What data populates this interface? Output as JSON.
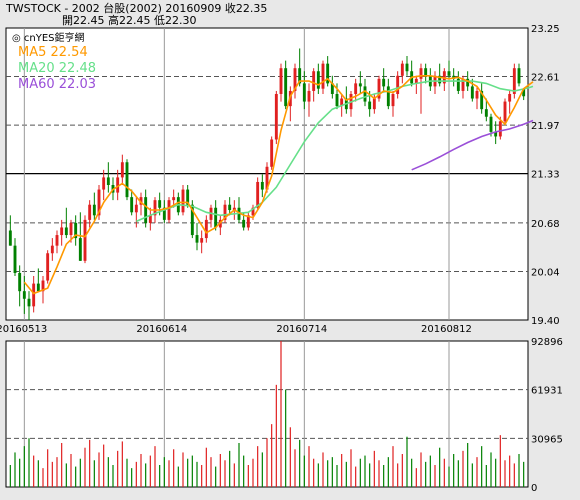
{
  "header": {
    "line1": "TWSTOCK  -  2002  台股(2002)  20160909    收22.35",
    "line2": "開22.45    高22.45    低22.30"
  },
  "legend": {
    "source": "◎ cnYES鉅亨網",
    "ma5": "MA5 22.54",
    "ma20": "MA20 22.48",
    "ma60": "MA60 22.03"
  },
  "colors": {
    "up": "#e02020",
    "down": "#008000",
    "ma5": "#ff9900",
    "ma20": "#66e08a",
    "ma60": "#9a4fd8",
    "background": "#ffffff",
    "page": "#e8e8e8"
  },
  "chart_data": [
    {
      "type": "candlestick",
      "y_ticks": [
        "23.25",
        "22.61",
        "21.97",
        "21.33",
        "20.68",
        "20.04",
        "19.40"
      ],
      "ylim": [
        19.4,
        23.25
      ],
      "x_ticks": [
        "20160513",
        "20160614",
        "20160714",
        "20160812"
      ],
      "x_tick_index": [
        3,
        33,
        63,
        94
      ],
      "grid": "dashed horizontal",
      "candles": [
        [
          20.58,
          20.78,
          20.38,
          20.38
        ],
        [
          20.38,
          20.48,
          19.98,
          20.02
        ],
        [
          20.02,
          20.12,
          19.58,
          19.78
        ],
        [
          19.78,
          19.98,
          19.48,
          19.68
        ],
        [
          19.68,
          19.78,
          19.4,
          19.58
        ],
        [
          19.58,
          19.98,
          19.5,
          19.88
        ],
        [
          19.88,
          20.08,
          19.78,
          19.78
        ],
        [
          19.78,
          19.98,
          19.62,
          19.92
        ],
        [
          19.92,
          20.32,
          19.88,
          20.28
        ],
        [
          20.28,
          20.48,
          20.18,
          20.38
        ],
        [
          20.38,
          20.58,
          20.28,
          20.52
        ],
        [
          20.52,
          20.72,
          20.38,
          20.62
        ],
        [
          20.62,
          20.88,
          20.48,
          20.52
        ],
        [
          20.52,
          20.72,
          20.42,
          20.68
        ],
        [
          20.68,
          20.78,
          20.38,
          20.48
        ],
        [
          20.48,
          20.82,
          20.18,
          20.18
        ],
        [
          20.18,
          20.78,
          20.15,
          20.72
        ],
        [
          20.72,
          20.98,
          20.62,
          20.92
        ],
        [
          20.92,
          21.08,
          20.72,
          20.78
        ],
        [
          20.78,
          21.18,
          20.72,
          21.12
        ],
        [
          21.12,
          21.38,
          20.98,
          21.28
        ],
        [
          21.28,
          21.48,
          21.08,
          21.18
        ],
        [
          21.18,
          21.28,
          20.98,
          21.08
        ],
        [
          21.08,
          21.38,
          20.98,
          21.28
        ],
        [
          21.28,
          21.58,
          21.18,
          21.48
        ],
        [
          21.48,
          21.52,
          20.98,
          21.02
        ],
        [
          21.02,
          21.12,
          20.78,
          20.82
        ],
        [
          20.82,
          21.02,
          20.62,
          20.92
        ],
        [
          20.92,
          21.08,
          20.78,
          21.02
        ],
        [
          21.02,
          21.12,
          20.62,
          20.68
        ],
        [
          20.68,
          20.88,
          20.58,
          20.78
        ],
        [
          20.78,
          21.02,
          20.68,
          20.98
        ],
        [
          20.98,
          21.08,
          20.78,
          20.88
        ],
        [
          20.88,
          20.98,
          20.68,
          20.72
        ],
        [
          20.72,
          21.02,
          20.68,
          20.98
        ],
        [
          20.98,
          21.12,
          20.88,
          21.02
        ],
        [
          21.02,
          21.08,
          20.78,
          20.82
        ],
        [
          20.82,
          21.18,
          20.78,
          21.12
        ],
        [
          21.12,
          21.18,
          20.88,
          20.92
        ],
        [
          20.92,
          20.98,
          20.48,
          20.52
        ],
        [
          20.52,
          20.68,
          20.32,
          20.42
        ],
        [
          20.42,
          20.58,
          20.28,
          20.48
        ],
        [
          20.48,
          20.78,
          20.42,
          20.72
        ],
        [
          20.72,
          20.92,
          20.62,
          20.88
        ],
        [
          20.88,
          20.98,
          20.58,
          20.62
        ],
        [
          20.62,
          20.78,
          20.52,
          20.72
        ],
        [
          20.72,
          20.98,
          20.68,
          20.92
        ],
        [
          20.92,
          21.02,
          20.78,
          20.85
        ],
        [
          20.85,
          20.98,
          20.72,
          20.88
        ],
        [
          20.88,
          21.02,
          20.68,
          20.72
        ],
        [
          20.72,
          20.82,
          20.58,
          20.62
        ],
        [
          20.62,
          20.82,
          20.58,
          20.78
        ],
        [
          20.78,
          20.92,
          20.72,
          20.88
        ],
        [
          20.88,
          21.28,
          20.85,
          21.22
        ],
        [
          21.22,
          21.32,
          21.02,
          21.12
        ],
        [
          21.12,
          21.48,
          21.08,
          21.42
        ],
        [
          21.42,
          21.82,
          21.38,
          21.78
        ],
        [
          21.78,
          22.42,
          21.72,
          22.38
        ],
        [
          22.38,
          22.78,
          22.28,
          22.72
        ],
        [
          22.72,
          22.82,
          22.18,
          22.22
        ],
        [
          22.22,
          22.48,
          22.02,
          22.42
        ],
        [
          22.42,
          22.78,
          22.32,
          22.72
        ],
        [
          22.72,
          22.98,
          22.48,
          22.52
        ],
        [
          22.52,
          22.68,
          22.18,
          22.28
        ],
        [
          22.28,
          22.52,
          22.08,
          22.42
        ],
        [
          22.42,
          22.72,
          22.28,
          22.68
        ],
        [
          22.68,
          22.78,
          22.38,
          22.45
        ],
        [
          22.45,
          22.82,
          22.38,
          22.78
        ],
        [
          22.78,
          22.88,
          22.48,
          22.52
        ],
        [
          22.52,
          22.62,
          22.32,
          22.38
        ],
        [
          22.38,
          22.52,
          22.18,
          22.22
        ],
        [
          22.22,
          22.38,
          22.08,
          22.32
        ],
        [
          22.32,
          22.48,
          22.12,
          22.18
        ],
        [
          22.18,
          22.42,
          22.08,
          22.38
        ],
        [
          22.38,
          22.58,
          22.28,
          22.52
        ],
        [
          22.52,
          22.68,
          22.38,
          22.48
        ],
        [
          22.48,
          22.58,
          22.22,
          22.28
        ],
        [
          22.28,
          22.42,
          22.08,
          22.18
        ],
        [
          22.18,
          22.38,
          22.12,
          22.32
        ],
        [
          22.32,
          22.62,
          22.28,
          22.58
        ],
        [
          22.58,
          22.72,
          22.42,
          22.48
        ],
        [
          22.48,
          22.58,
          22.18,
          22.22
        ],
        [
          22.22,
          22.42,
          22.08,
          22.38
        ],
        [
          22.38,
          22.68,
          22.32,
          22.62
        ],
        [
          22.62,
          22.82,
          22.52,
          22.78
        ],
        [
          22.78,
          22.88,
          22.62,
          22.68
        ],
        [
          22.68,
          22.82,
          22.48,
          22.52
        ],
        [
          22.52,
          22.62,
          22.38,
          22.58
        ],
        [
          22.58,
          22.78,
          22.12,
          22.72
        ],
        [
          22.72,
          22.78,
          22.52,
          22.62
        ],
        [
          22.62,
          22.72,
          22.42,
          22.48
        ],
        [
          22.48,
          22.68,
          22.38,
          22.62
        ],
        [
          22.62,
          22.78,
          22.48,
          22.52
        ],
        [
          22.52,
          22.72,
          22.42,
          22.68
        ],
        [
          22.68,
          22.82,
          22.58,
          22.62
        ],
        [
          22.62,
          22.72,
          22.48,
          22.58
        ],
        [
          22.58,
          22.68,
          22.38,
          22.42
        ],
        [
          22.42,
          22.62,
          22.32,
          22.58
        ],
        [
          22.58,
          22.68,
          22.42,
          22.48
        ],
        [
          22.48,
          22.58,
          22.28,
          22.32
        ],
        [
          22.32,
          22.48,
          22.18,
          22.42
        ],
        [
          22.42,
          22.52,
          22.12,
          22.18
        ],
        [
          22.18,
          22.32,
          22.02,
          22.08
        ],
        [
          22.08,
          22.12,
          21.82,
          21.88
        ],
        [
          21.88,
          22.02,
          21.72,
          21.82
        ],
        [
          21.82,
          22.08,
          21.78,
          22.02
        ],
        [
          22.02,
          22.32,
          21.98,
          22.28
        ],
        [
          22.28,
          22.42,
          22.12,
          22.38
        ],
        [
          22.38,
          22.78,
          22.32,
          22.72
        ],
        [
          22.72,
          22.78,
          22.48,
          22.52
        ],
        [
          22.45,
          22.45,
          22.3,
          22.35
        ]
      ],
      "ma5": [
        [
          3,
          19.9
        ],
        [
          5,
          19.75
        ],
        [
          8,
          19.82
        ],
        [
          10,
          20.1
        ],
        [
          12,
          20.4
        ],
        [
          14,
          20.52
        ],
        [
          16,
          20.5
        ],
        [
          18,
          20.7
        ],
        [
          20,
          20.95
        ],
        [
          22,
          21.12
        ],
        [
          24,
          21.2
        ],
        [
          26,
          21.1
        ],
        [
          28,
          20.95
        ],
        [
          30,
          20.85
        ],
        [
          32,
          20.85
        ],
        [
          34,
          20.88
        ],
        [
          36,
          20.95
        ],
        [
          38,
          20.95
        ],
        [
          40,
          20.75
        ],
        [
          42,
          20.55
        ],
        [
          44,
          20.62
        ],
        [
          46,
          20.75
        ],
        [
          48,
          20.85
        ],
        [
          50,
          20.78
        ],
        [
          52,
          20.75
        ],
        [
          54,
          20.95
        ],
        [
          56,
          21.3
        ],
        [
          58,
          21.9
        ],
        [
          60,
          22.35
        ],
        [
          62,
          22.55
        ],
        [
          64,
          22.55
        ],
        [
          66,
          22.5
        ],
        [
          68,
          22.58
        ],
        [
          70,
          22.45
        ],
        [
          72,
          22.3
        ],
        [
          74,
          22.35
        ],
        [
          76,
          22.42
        ],
        [
          78,
          22.32
        ],
        [
          80,
          22.42
        ],
        [
          82,
          22.4
        ],
        [
          84,
          22.48
        ],
        [
          86,
          22.6
        ],
        [
          88,
          22.62
        ],
        [
          90,
          22.62
        ],
        [
          92,
          22.6
        ],
        [
          94,
          22.58
        ],
        [
          96,
          22.6
        ],
        [
          98,
          22.55
        ],
        [
          100,
          22.48
        ],
        [
          102,
          22.3
        ],
        [
          104,
          22.1
        ],
        [
          106,
          21.98
        ],
        [
          108,
          22.2
        ],
        [
          110,
          22.45
        ],
        [
          112,
          22.54
        ]
      ],
      "ma20": [
        [
          27,
          20.7
        ],
        [
          30,
          20.78
        ],
        [
          33,
          20.85
        ],
        [
          36,
          20.92
        ],
        [
          39,
          20.9
        ],
        [
          42,
          20.82
        ],
        [
          45,
          20.78
        ],
        [
          48,
          20.8
        ],
        [
          51,
          20.82
        ],
        [
          54,
          20.95
        ],
        [
          57,
          21.15
        ],
        [
          60,
          21.45
        ],
        [
          63,
          21.75
        ],
        [
          66,
          22.0
        ],
        [
          69,
          22.18
        ],
        [
          72,
          22.25
        ],
        [
          75,
          22.32
        ],
        [
          78,
          22.38
        ],
        [
          81,
          22.42
        ],
        [
          84,
          22.48
        ],
        [
          87,
          22.52
        ],
        [
          90,
          22.55
        ],
        [
          93,
          22.55
        ],
        [
          96,
          22.55
        ],
        [
          99,
          22.55
        ],
        [
          102,
          22.52
        ],
        [
          105,
          22.45
        ],
        [
          108,
          22.42
        ],
        [
          111,
          22.46
        ],
        [
          112,
          22.48
        ]
      ],
      "ma60": [
        [
          86,
          21.38
        ],
        [
          89,
          21.46
        ],
        [
          92,
          21.55
        ],
        [
          95,
          21.65
        ],
        [
          98,
          21.74
        ],
        [
          101,
          21.82
        ],
        [
          104,
          21.88
        ],
        [
          107,
          21.92
        ],
        [
          110,
          21.98
        ],
        [
          112,
          22.03
        ]
      ]
    },
    {
      "type": "bar",
      "y_ticks": [
        "92896",
        "61931",
        "30965",
        "0"
      ],
      "ylim": [
        0,
        92896
      ],
      "values": [
        14000,
        22000,
        18000,
        26000,
        31000,
        20000,
        17000,
        12000,
        24000,
        16000,
        19000,
        28000,
        15000,
        21000,
        13000,
        18000,
        25000,
        30000,
        17000,
        22000,
        27000,
        19000,
        14000,
        23000,
        29000,
        18000,
        12000,
        16000,
        21000,
        15000,
        20000,
        26000,
        14000,
        19000,
        17000,
        24000,
        13000,
        22000,
        18000,
        20000,
        16000,
        14000,
        25000,
        19000,
        13000,
        21000,
        17000,
        23000,
        15000,
        28000,
        20000,
        14000,
        18000,
        26000,
        22000,
        31000,
        40000,
        65000,
        92896,
        62000,
        38000,
        24000,
        30000,
        20000,
        26000,
        18000,
        15000,
        22000,
        17000,
        19000,
        14000,
        21000,
        16000,
        24000,
        13000,
        18000,
        20000,
        15000,
        23000,
        17000,
        14000,
        19000,
        26000,
        15000,
        21000,
        32000,
        18000,
        12000,
        22000,
        16000,
        20000,
        14000,
        25000,
        18000,
        13000,
        21000,
        17000,
        23000,
        28000,
        15000,
        19000,
        26000,
        14000,
        22000,
        18000,
        33000,
        17000,
        20000,
        15000,
        21000,
        16000,
        24000,
        19000
      ]
    }
  ]
}
